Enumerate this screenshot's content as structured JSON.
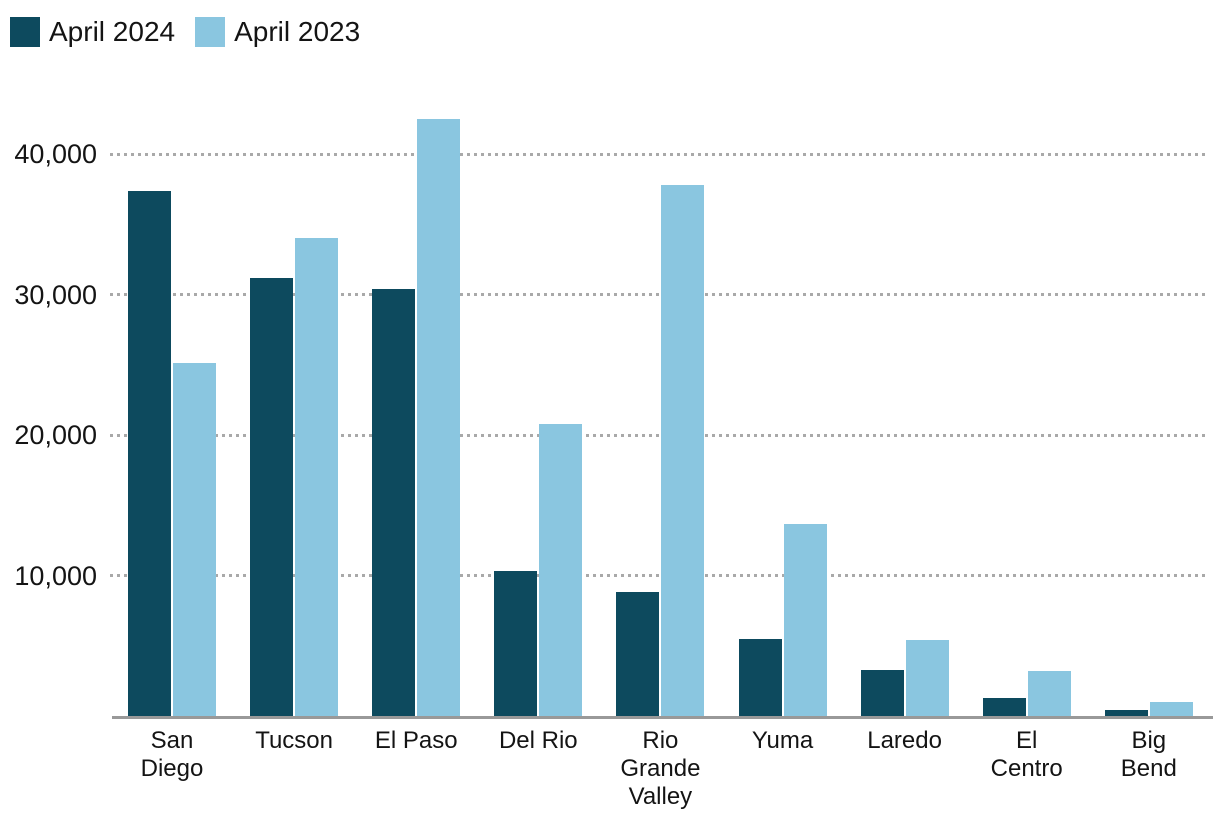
{
  "legend": {
    "items": [
      {
        "label": "April 2024",
        "color": "#0d4a5e"
      },
      {
        "label": "April 2023",
        "color": "#8ac6e0"
      }
    ]
  },
  "chart_data": {
    "type": "bar",
    "title": "",
    "xlabel": "",
    "ylabel": "",
    "categories": [
      "San Diego",
      "Tucson",
      "El Paso",
      "Del Rio",
      "Rio Grande Valley",
      "Yuma",
      "Laredo",
      "El Centro",
      "Big Bend"
    ],
    "category_labels_wrapped": [
      "San\nDiego",
      "Tucson",
      "El Paso",
      "Del Rio",
      "Rio\nGrande\nValley",
      "Yuma",
      "Laredo",
      "El\nCentro",
      "Big\nBend"
    ],
    "series": [
      {
        "name": "April 2024",
        "color": "#0d4a5e",
        "values": [
          37400,
          31200,
          30400,
          10300,
          8800,
          5500,
          3300,
          1300,
          450
        ]
      },
      {
        "name": "April 2023",
        "color": "#8ac6e0",
        "values": [
          25100,
          34000,
          42500,
          20800,
          37800,
          13700,
          5400,
          3200,
          1000
        ]
      }
    ],
    "ylim": [
      0,
      42800
    ],
    "yticks": [
      10000,
      20000,
      30000,
      40000
    ],
    "ytick_labels": [
      "10,000",
      "20,000",
      "30,000",
      "40,000"
    ],
    "grid": "horizontal-dotted",
    "gridline_color": "#a9a9a9",
    "axis_line_color": "#999999",
    "legend_position": "top-left"
  }
}
